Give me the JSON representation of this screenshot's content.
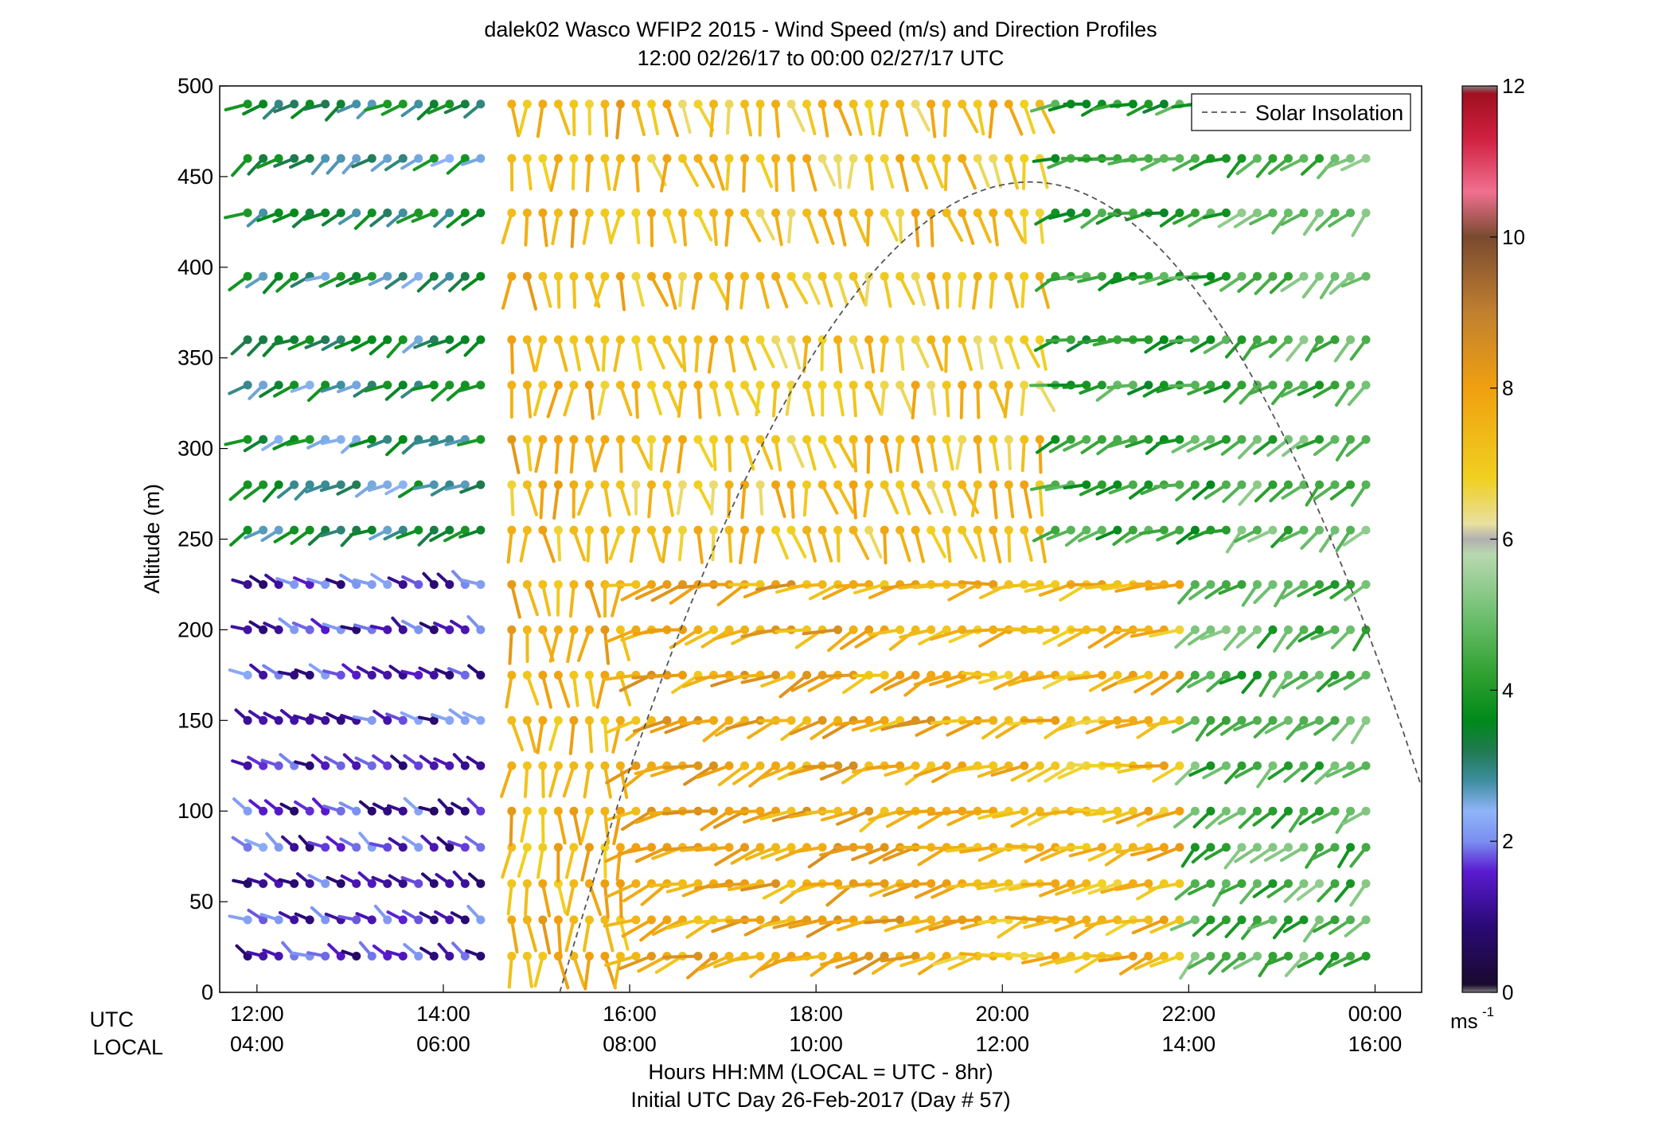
{
  "chart_data": {
    "type": "wind_barb_profile",
    "title": "dalek02 Wasco WFIP2 2015 - Wind Speed (m/s) and Direction Profiles",
    "subtitle": "12:00 02/26/17 to 00:00 02/27/17  UTC",
    "xlabel": "Hours HH:MM  (LOCAL = UTC - 8hr)",
    "xlabel2": "Initial UTC Day 26-Feb-2017 (Day # 57)",
    "ylabel": "Altitude (m)",
    "utc_row_label": "UTC",
    "local_row_label": "LOCAL",
    "xlim_hours_utc": [
      11.6,
      24.5
    ],
    "ylim": [
      0,
      500
    ],
    "yticks": [
      0,
      50,
      100,
      150,
      200,
      250,
      300,
      350,
      400,
      450,
      500
    ],
    "ytick_labels": [
      "0",
      "50",
      "100",
      "150",
      "200",
      "250",
      "300",
      "350",
      "400",
      "450",
      "500"
    ],
    "xticks_hours_utc": [
      12,
      14,
      16,
      18,
      20,
      22,
      24
    ],
    "xtick_labels_utc": [
      "12:00",
      "14:00",
      "16:00",
      "18:00",
      "20:00",
      "22:00",
      "00:00"
    ],
    "xtick_labels_local": [
      "04:00",
      "06:00",
      "08:00",
      "10:00",
      "12:00",
      "14:00",
      "16:00"
    ],
    "legend": {
      "label": "Solar Insolation",
      "placement": "top-right"
    },
    "solar_insolation": {
      "style": "dashed",
      "color": "#555555",
      "start_hour_utc": 15.25,
      "peak_hour_utc": 20.3,
      "peak_altitude": 447,
      "end_hour_utc": 24.5,
      "end_altitude": 113
    },
    "colorbar": {
      "label": "ms",
      "label_exponent": "-1",
      "ticks": [
        "0",
        "2",
        "4",
        "6",
        "8",
        "10",
        "12"
      ],
      "range": [
        0,
        12
      ],
      "stops": [
        {
          "v": 0.0,
          "c": "#808080"
        },
        {
          "v": 0.1,
          "c": "#1a0a2e"
        },
        {
          "v": 0.9,
          "c": "#2a0a78"
        },
        {
          "v": 1.6,
          "c": "#5a1ad0"
        },
        {
          "v": 2.0,
          "c": "#7a8ef0"
        },
        {
          "v": 2.4,
          "c": "#8fb4f8"
        },
        {
          "v": 2.8,
          "c": "#3e8ea0"
        },
        {
          "v": 3.2,
          "c": "#1f7a50"
        },
        {
          "v": 3.6,
          "c": "#008a1a"
        },
        {
          "v": 4.2,
          "c": "#2fa030"
        },
        {
          "v": 5.0,
          "c": "#6fc070"
        },
        {
          "v": 5.8,
          "c": "#b8d8b0"
        },
        {
          "v": 6.0,
          "c": "#b0b0b0"
        },
        {
          "v": 6.2,
          "c": "#e8e0a0"
        },
        {
          "v": 6.8,
          "c": "#f0d020"
        },
        {
          "v": 8.0,
          "c": "#f0a010"
        },
        {
          "v": 9.0,
          "c": "#c08030"
        },
        {
          "v": 10.0,
          "c": "#7a4a30"
        },
        {
          "v": 10.6,
          "c": "#f07090"
        },
        {
          "v": 11.3,
          "c": "#d02040"
        },
        {
          "v": 11.9,
          "c": "#a01020"
        },
        {
          "v": 12.0,
          "c": "#808080"
        }
      ]
    },
    "grid": false,
    "series_note": "Wind barbs: color = speed (m/s), line direction = wind direction",
    "wind_altitudes_m": [
      20,
      40,
      60,
      80,
      100,
      125,
      150,
      175,
      200,
      225,
      255,
      280,
      305,
      335,
      360,
      395,
      430,
      460,
      490
    ],
    "wind_times_hours_utc_step": 0.1667,
    "wind_regimes": [
      {
        "from_hour": 11.9,
        "to_hour": 14.5,
        "below_alt": 230,
        "speed_ms": 1.5,
        "direction_deg": 300
      },
      {
        "from_hour": 11.9,
        "to_hour": 14.5,
        "above_alt": 230,
        "speed_ms": 3.2,
        "direction_deg": 240
      },
      {
        "from_hour": 14.7,
        "to_hour": 16.0,
        "speed_ms": 7.5,
        "direction_deg": 180
      },
      {
        "from_hour": 16.0,
        "to_hour": 19.5,
        "below_alt": 250,
        "speed_ms": 7.8,
        "direction_deg": 250
      },
      {
        "from_hour": 16.0,
        "to_hour": 20.5,
        "above_alt": 250,
        "speed_ms": 7.2,
        "direction_deg": 170
      },
      {
        "from_hour": 19.5,
        "to_hour": 22.0,
        "below_alt": 250,
        "speed_ms": 7.4,
        "direction_deg": 255
      },
      {
        "from_hour": 20.5,
        "to_hour": 22.5,
        "above_alt": 250,
        "speed_ms": 4.2,
        "direction_deg": 250
      },
      {
        "from_hour": 22.0,
        "to_hour": 24.0,
        "speed_ms": 4.6,
        "direction_deg": 230
      }
    ]
  }
}
